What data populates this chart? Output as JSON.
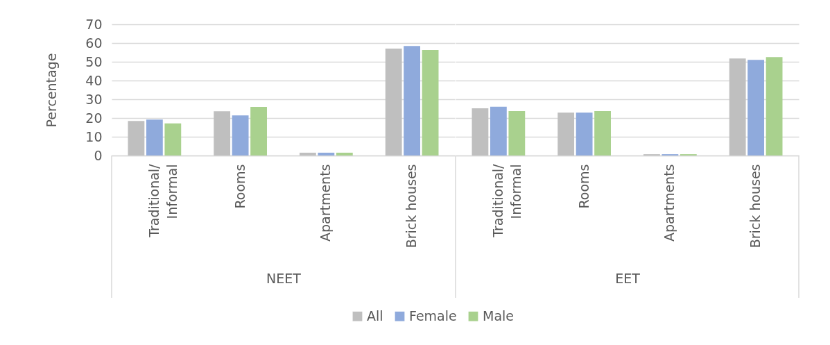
{
  "chart_data": [
    {
      "type": "bar",
      "xlabel": "NEET",
      "ylabel": "Percentage",
      "categories": [
        "Traditional/\nInformal",
        "Rooms",
        "Apartments",
        "Brick houses"
      ],
      "series": [
        {
          "name": "All",
          "color": "#bfbfbf",
          "values": [
            18.4,
            23.6,
            1.5,
            57.0
          ]
        },
        {
          "name": "Female",
          "color": "#8faadc",
          "values": [
            19.2,
            21.4,
            1.5,
            58.4
          ]
        },
        {
          "name": "Male",
          "color": "#a9d18e",
          "values": [
            17.1,
            25.9,
            1.5,
            56.3
          ]
        }
      ],
      "ylim": [
        0,
        70
      ],
      "yticks": [
        0,
        10,
        20,
        30,
        40,
        50,
        60,
        70
      ],
      "grid": "y",
      "legend": "bottom"
    },
    {
      "type": "bar",
      "xlabel": "EET",
      "categories": [
        "Traditional/\nInformal",
        "Rooms",
        "Apartments",
        "Brick houses"
      ],
      "series": [
        {
          "name": "All",
          "color": "#bfbfbf",
          "values": [
            25.2,
            22.9,
            0.7,
            51.8
          ]
        },
        {
          "name": "Female",
          "color": "#8faadc",
          "values": [
            26.0,
            22.9,
            0.7,
            51.0
          ]
        },
        {
          "name": "Male",
          "color": "#a9d18e",
          "values": [
            23.7,
            23.7,
            0.7,
            52.5
          ]
        }
      ],
      "ylim": [
        0,
        70
      ],
      "yticks": [
        0,
        10,
        20,
        30,
        40,
        50,
        60,
        70
      ],
      "grid": "y",
      "tick_labels": "x",
      "legend": "bottom"
    }
  ]
}
